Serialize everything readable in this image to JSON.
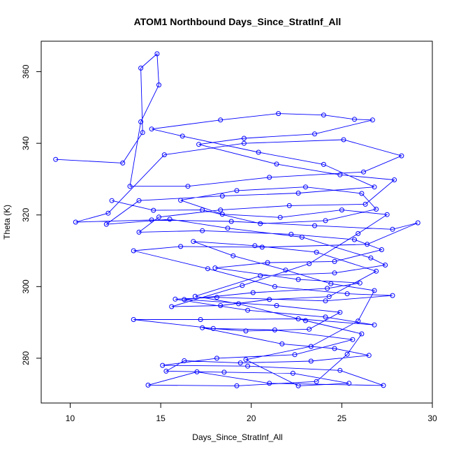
{
  "chart_data": {
    "type": "line",
    "title": "ATOM1 Northbound Days_Since_StratInf_All",
    "xlabel": "Days_Since_StratInf_All",
    "ylabel": "Theta (K)",
    "xlim": [
      8.4,
      30.0
    ],
    "ylim": [
      267.5,
      368.5
    ],
    "xticks": [
      10,
      15,
      20,
      25,
      30
    ],
    "yticks": [
      280,
      300,
      320,
      340,
      360
    ],
    "grid": false,
    "legend": "none",
    "series_color": "#0000ff",
    "marker": "open-circle",
    "series": [
      {
        "points": [
          [
            9.2,
            335.5
          ],
          [
            12.9,
            334.5
          ],
          [
            14.0,
            343.0
          ],
          [
            13.9,
            361.0
          ],
          [
            14.8,
            365.0
          ],
          [
            14.9,
            356.3
          ],
          [
            13.9,
            346.0
          ],
          [
            13.3,
            328.0
          ],
          [
            16.5,
            328.0
          ],
          [
            21.0,
            330.5
          ],
          [
            26.2,
            332.0
          ],
          [
            28.3,
            336.5
          ],
          [
            25.1,
            341.0
          ],
          [
            19.6,
            340.0
          ],
          [
            15.2,
            336.8
          ],
          [
            12.1,
            320.5
          ],
          [
            10.3,
            318.0
          ],
          [
            14.5,
            318.6
          ],
          [
            18.9,
            318.2
          ],
          [
            23.5,
            317.0
          ],
          [
            27.8,
            316.0
          ],
          [
            29.2,
            317.8
          ],
          [
            26.4,
            311.8
          ],
          [
            20.6,
            311.0
          ],
          [
            16.1,
            311.2
          ],
          [
            13.5,
            310.0
          ],
          [
            17.6,
            305.0
          ],
          [
            21.3,
            300.0
          ],
          [
            25.3,
            298.0
          ],
          [
            27.8,
            297.5
          ],
          [
            24.1,
            296.0
          ],
          [
            18.1,
            297.0
          ],
          [
            15.8,
            296.5
          ],
          [
            19.8,
            293.4
          ],
          [
            24.1,
            291.5
          ],
          [
            26.8,
            289.3
          ],
          [
            22.6,
            291.0
          ],
          [
            17.2,
            290.8
          ],
          [
            13.5,
            290.8
          ],
          [
            17.9,
            288.3
          ],
          [
            21.3,
            287.9
          ],
          [
            25.6,
            285.2
          ],
          [
            22.4,
            281.0
          ],
          [
            18.1,
            280.0
          ],
          [
            15.1,
            278.0
          ],
          [
            19.8,
            277.8
          ],
          [
            24.9,
            276.6
          ],
          [
            27.3,
            272.4
          ],
          [
            21.0,
            273.0
          ],
          [
            17.0,
            276.2
          ],
          [
            14.3,
            272.5
          ],
          [
            19.2,
            272.3
          ],
          [
            23.6,
            273.5
          ],
          [
            25.3,
            281.1
          ],
          [
            26.1,
            286.8
          ],
          [
            23.0,
            290.5
          ],
          [
            19.3,
            295.2
          ],
          [
            16.9,
            297.3
          ],
          [
            20.5,
            303.0
          ],
          [
            24.6,
            303.8
          ],
          [
            27.4,
            306.0
          ],
          [
            26.6,
            308.0
          ],
          [
            22.8,
            313.8
          ],
          [
            18.7,
            316.3
          ],
          [
            15.5,
            318.8
          ],
          [
            12.0,
            317.4
          ],
          [
            13.8,
            324.0
          ],
          [
            18.4,
            325.3
          ],
          [
            22.6,
            326.1
          ],
          [
            26.8,
            327.8
          ],
          [
            24.0,
            334.1
          ],
          [
            20.4,
            337.5
          ],
          [
            16.2,
            342.0
          ],
          [
            14.5,
            344.0
          ],
          [
            18.3,
            346.5
          ],
          [
            21.5,
            348.3
          ],
          [
            24.0,
            347.9
          ],
          [
            25.7,
            346.7
          ],
          [
            26.7,
            346.5
          ],
          [
            23.5,
            342.6
          ],
          [
            19.6,
            341.4
          ],
          [
            17.1,
            339.7
          ],
          [
            21.4,
            334.2
          ],
          [
            24.9,
            331.2
          ],
          [
            27.9,
            329.8
          ],
          [
            26.3,
            323.0
          ],
          [
            22.1,
            322.6
          ],
          [
            18.3,
            321.4
          ],
          [
            14.9,
            319.4
          ],
          [
            13.8,
            315.2
          ],
          [
            17.3,
            315.6
          ],
          [
            22.2,
            314.6
          ],
          [
            25.7,
            313.1
          ],
          [
            27.2,
            310.3
          ],
          [
            24.6,
            307.0
          ],
          [
            20.9,
            306.7
          ],
          [
            18.0,
            305.2
          ],
          [
            22.6,
            302.0
          ],
          [
            26.0,
            301.0
          ],
          [
            24.2,
            299.5
          ],
          [
            20.1,
            298.3
          ],
          [
            16.3,
            296.4
          ],
          [
            21.4,
            294.7
          ],
          [
            24.9,
            292.8
          ],
          [
            23.2,
            288.1
          ],
          [
            19.7,
            287.6
          ],
          [
            17.3,
            288.5
          ],
          [
            21.7,
            284.0
          ],
          [
            24.6,
            282.7
          ],
          [
            26.5,
            280.8
          ],
          [
            23.3,
            279.2
          ],
          [
            19.4,
            278.7
          ],
          [
            16.3,
            279.3
          ],
          [
            15.3,
            276.4
          ],
          [
            18.5,
            276.1
          ],
          [
            22.3,
            275.8
          ],
          [
            25.4,
            273.0
          ],
          [
            22.6,
            272.3
          ],
          [
            19.7,
            279.6
          ],
          [
            23.3,
            283.3
          ],
          [
            25.9,
            290.4
          ],
          [
            26.8,
            298.9
          ],
          [
            24.4,
            300.8
          ],
          [
            21.9,
            304.6
          ],
          [
            19.0,
            308.6
          ],
          [
            16.8,
            312.6
          ],
          [
            20.2,
            311.4
          ],
          [
            23.6,
            309.6
          ],
          [
            26.9,
            304.3
          ],
          [
            24.3,
            297.2
          ],
          [
            21.0,
            296.4
          ],
          [
            18.3,
            294.7
          ],
          [
            15.6,
            294.4
          ],
          [
            19.5,
            300.3
          ],
          [
            23.2,
            306.4
          ],
          [
            25.9,
            314.8
          ],
          [
            27.5,
            320.1
          ],
          [
            25.0,
            321.4
          ],
          [
            21.6,
            319.3
          ],
          [
            18.4,
            320.2
          ],
          [
            16.1,
            324.1
          ],
          [
            19.2,
            326.8
          ],
          [
            23.0,
            327.8
          ],
          [
            26.1,
            326.0
          ],
          [
            26.9,
            321.6
          ],
          [
            24.1,
            318.4
          ],
          [
            20.5,
            317.6
          ],
          [
            17.3,
            321.4
          ],
          [
            14.6,
            321.3
          ],
          [
            12.3,
            324.0
          ]
        ]
      }
    ]
  }
}
